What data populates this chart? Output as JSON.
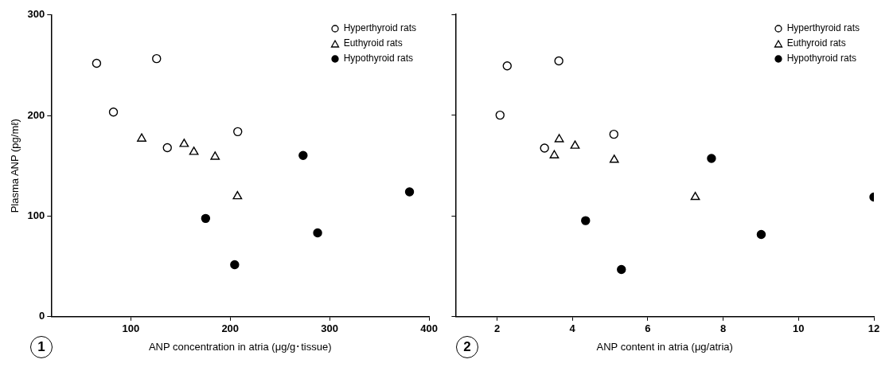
{
  "chart_data": [
    {
      "type": "scatter",
      "ylabel": "Plasma ANP (pg/mℓ)",
      "xlabel": "ANP concentration in atria (μg/g･tissue)",
      "annotations": [
        "1"
      ],
      "xlim": [
        20,
        400
      ],
      "xticks": [
        100,
        200,
        300,
        400
      ],
      "ylim": [
        0,
        300
      ],
      "yticks": [
        0,
        100,
        200,
        300
      ],
      "grid": false,
      "legend": "top right",
      "series": [
        {
          "name": "Hyperthyroid rats",
          "color": "#000000",
          "marker": "circle",
          "x": [
            65.7,
            82.6,
            126,
            136.8,
            207.6
          ],
          "values": [
            252,
            203.5,
            256.6,
            168,
            184
          ]
        },
        {
          "name": "Euthyroid rats",
          "color": "#000000",
          "marker": "triangle",
          "x": [
            111,
            153.7,
            163.5,
            184.8,
            207.3
          ],
          "values": [
            177,
            171.7,
            163.8,
            159,
            119.7
          ]
        },
        {
          "name": "Hypothyroid rats",
          "color": "#000000",
          "marker": "circle",
          "x": [
            175.3,
            204.5,
            273.3,
            287.9,
            380.3
          ],
          "values": [
            97.7,
            51.7,
            160.3,
            83.3,
            124.1
          ]
        }
      ]
    },
    {
      "type": "scatter",
      "xlabel": "ANP content in atria (μg/atria)",
      "annotations": [
        "2"
      ],
      "xlim": [
        0.9,
        12
      ],
      "xticks": [
        2,
        4,
        6,
        8,
        10,
        12
      ],
      "ylim": [
        0,
        300
      ],
      "yticks": [
        0,
        100,
        200,
        300
      ],
      "tick_labels": "x",
      "grid": false,
      "legend": "top right",
      "series": [
        {
          "name": "Hyperthyroid rats",
          "color": "#000000",
          "marker": "circle",
          "x": [
            2.27,
            3.64,
            2.08,
            3.26,
            5.1
          ],
          "values": [
            248.8,
            253.8,
            200,
            167.3,
            181
          ]
        },
        {
          "name": "Euthyroid rats",
          "color": "#000000",
          "marker": "triangle",
          "x": [
            3.65,
            4.07,
            3.52,
            5.11,
            7.26
          ],
          "values": [
            176,
            169.6,
            160,
            155.6,
            118.7
          ]
        },
        {
          "name": "Hypothyroid rats",
          "color": "#000000",
          "marker": "circle",
          "x": [
            4.35,
            5.3,
            7.69,
            9.01,
            12
          ],
          "values": [
            95.3,
            46.8,
            157,
            81.6,
            118.7
          ]
        }
      ]
    }
  ]
}
